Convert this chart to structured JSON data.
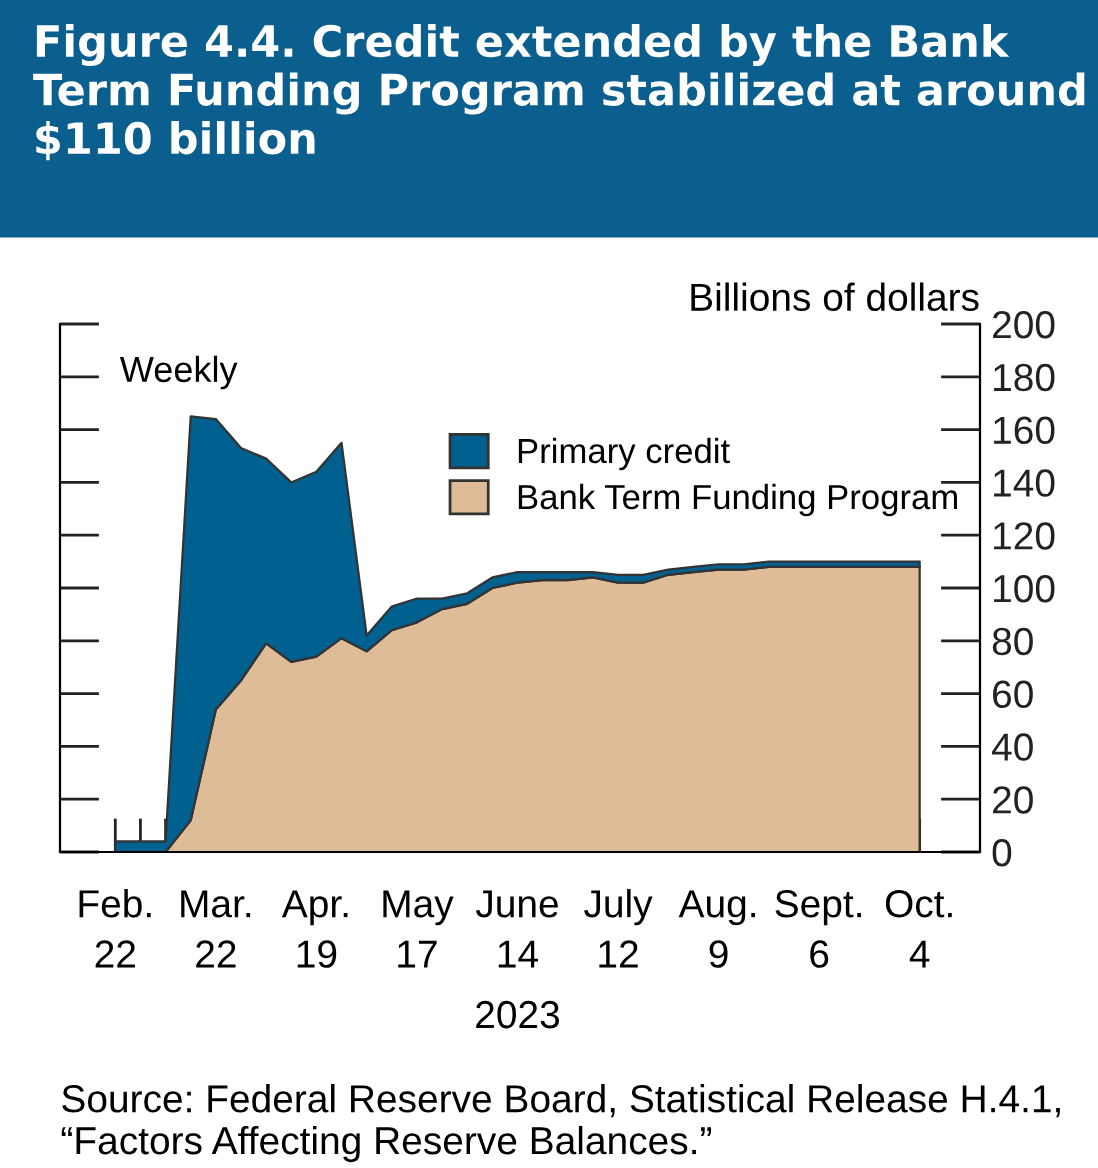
{
  "chart_data": {
    "type": "area",
    "stacked": true,
    "title": "Figure 4.4. Credit extended by the Bank Term Funding Program stabilized at around $110 billion",
    "ylabel": "Billions of dollars",
    "xlabel": "2023",
    "categories": [
      "Feb. 22",
      null,
      null,
      null,
      "Mar. 22",
      null,
      null,
      null,
      "Apr. 19",
      null,
      null,
      null,
      "May 17",
      null,
      null,
      null,
      "June 14",
      null,
      null,
      null,
      "July 12",
      null,
      null,
      null,
      "Aug. 9",
      null,
      null,
      null,
      "Sept. 6",
      null,
      null,
      null,
      "Oct. 4"
    ],
    "series": [
      {
        "name": "Bank Term Funding Program",
        "color": "#dfbc98",
        "values": [
          0,
          0,
          0,
          12,
          54,
          65,
          79,
          72,
          74,
          81,
          76,
          84,
          87,
          92,
          94,
          100,
          102,
          103,
          103,
          104,
          102,
          102,
          105,
          106,
          107,
          107,
          108,
          108,
          108,
          108,
          108,
          108,
          108
        ]
      },
      {
        "name": "Primary credit",
        "color": "#00608f",
        "values": [
          4,
          4,
          4,
          153,
          110,
          88,
          70,
          68,
          70,
          74,
          6,
          9,
          9,
          4,
          4,
          4,
          4,
          3,
          3,
          2,
          3,
          3,
          2,
          2,
          2,
          2,
          2,
          2,
          2,
          2,
          2,
          2,
          2
        ]
      }
    ],
    "ylim": [
      0,
      200
    ],
    "yticks": [
      0,
      20,
      40,
      60,
      80,
      100,
      120,
      140,
      160,
      180,
      200
    ],
    "grid": false,
    "legend": "top",
    "annotations": [
      "Weekly",
      "Source: Federal Reserve Board, Statistical Release H.4.1, “Factors Affecting Reserve Balances.”"
    ]
  }
}
